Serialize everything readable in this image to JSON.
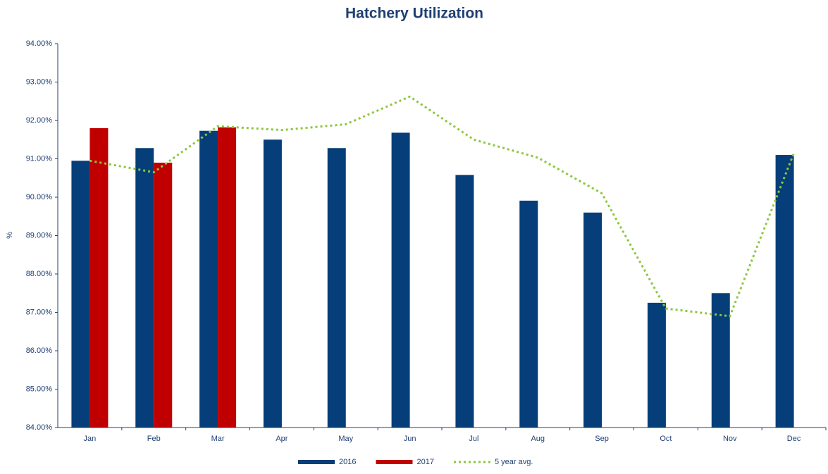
{
  "chart_data": {
    "type": "bar",
    "title": "Hatchery Utilization",
    "y_label": "%",
    "categories": [
      "Jan",
      "Feb",
      "Mar",
      "Apr",
      "May",
      "Jun",
      "Jul",
      "Aug",
      "Sep",
      "Oct",
      "Nov",
      "Dec"
    ],
    "series": [
      {
        "name": "2016",
        "type": "bar",
        "color": "#053e78",
        "values": [
          90.95,
          91.28,
          91.73,
          91.5,
          91.28,
          91.68,
          90.58,
          89.91,
          89.6,
          87.25,
          87.5,
          91.1
        ]
      },
      {
        "name": "2017",
        "type": "bar",
        "color": "#c00000",
        "values": [
          91.8,
          90.9,
          91.82,
          null,
          null,
          null,
          null,
          null,
          null,
          null,
          null,
          null
        ]
      },
      {
        "name": "5 year avg.",
        "type": "line",
        "style": "dotted",
        "color": "#8dc63f",
        "values": [
          90.95,
          90.65,
          91.85,
          91.75,
          91.9,
          92.62,
          91.5,
          91.03,
          90.1,
          87.1,
          86.9,
          91.15
        ]
      }
    ],
    "ylim": [
      84,
      94
    ],
    "yticks": [
      {
        "value": 84,
        "label": "84.00%"
      },
      {
        "value": 85,
        "label": "85.00%"
      },
      {
        "value": 86,
        "label": "86.00%"
      },
      {
        "value": 87,
        "label": "87.00%"
      },
      {
        "value": 88,
        "label": "88.00%"
      },
      {
        "value": 89,
        "label": "89.00%"
      },
      {
        "value": 90,
        "label": "90.00%"
      },
      {
        "value": 91,
        "label": "91.00%"
      },
      {
        "value": 92,
        "label": "92.00%"
      },
      {
        "value": 93,
        "label": "93.00%"
      },
      {
        "value": 94,
        "label": "94.00%"
      }
    ],
    "grid": false,
    "legend": "bottom"
  }
}
